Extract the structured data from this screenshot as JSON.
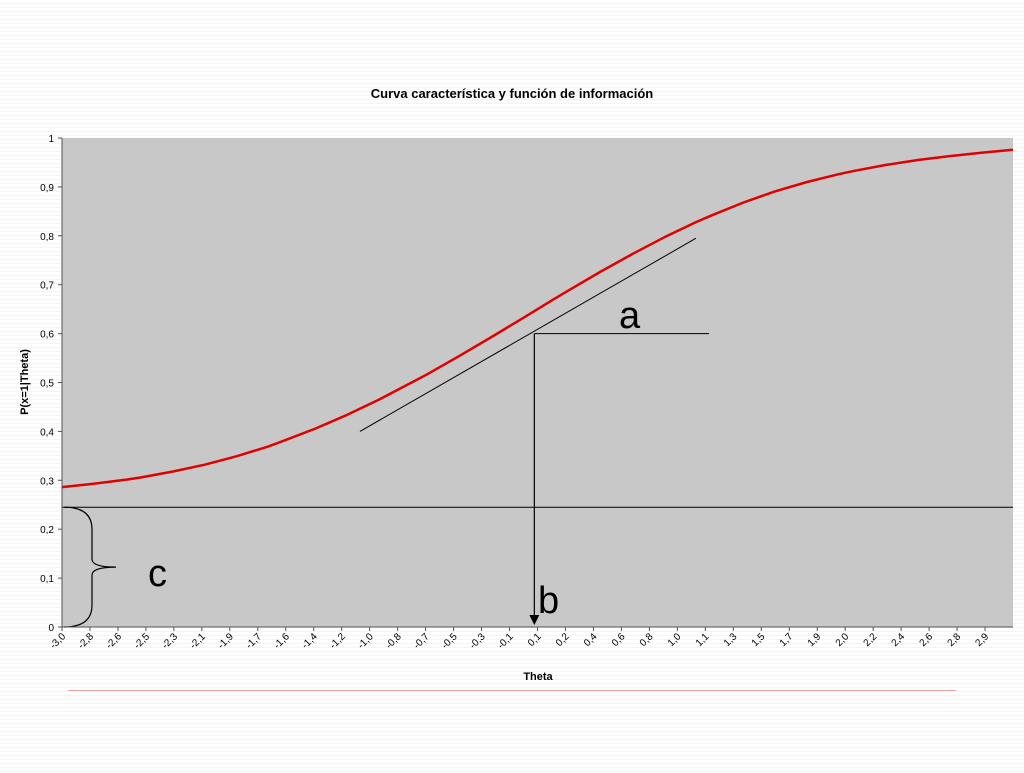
{
  "chart_data": {
    "type": "line",
    "title": "Curva característica y función de información",
    "xlabel": "Theta",
    "ylabel": "P(x=1|Theta)",
    "xlim": [
      -3.0,
      3.0
    ],
    "ylim": [
      0,
      1
    ],
    "yticks": [
      0,
      0.1,
      0.2,
      0.3,
      0.4,
      0.5,
      0.6,
      0.7,
      0.8,
      0.9,
      1
    ],
    "ytick_labels": [
      "0",
      "0,1",
      "0,2",
      "0,3",
      "0,4",
      "0,5",
      "0,6",
      "0,7",
      "0,8",
      "0,9",
      "1"
    ],
    "xtick_labels": [
      "-3,0",
      "-2,8",
      "-2,6",
      "-2,5",
      "-2,3",
      "-2,1",
      "-1,9",
      "-1,7",
      "-1,6",
      "-1,4",
      "-1,2",
      "-1,0",
      "-0,8",
      "-0,7",
      "-0,5",
      "-0,3",
      "-0,1",
      "0,1",
      "0,2",
      "0,4",
      "0,6",
      "0,8",
      "1,0",
      "1,1",
      "1,3",
      "1,5",
      "1,7",
      "1,9",
      "2,0",
      "2,2",
      "2,4",
      "2,6",
      "2,8",
      "2,9"
    ],
    "series": [
      {
        "color": "#e00000",
        "x": [
          -3.0,
          -2.8,
          -2.6,
          -2.5,
          -2.3,
          -2.1,
          -1.9,
          -1.7,
          -1.6,
          -1.4,
          -1.2,
          -1.0,
          -0.8,
          -0.7,
          -0.5,
          -0.3,
          -0.1,
          0.1,
          0.2,
          0.4,
          0.6,
          0.8,
          1.0,
          1.1,
          1.3,
          1.5,
          1.7,
          1.9,
          2.0,
          2.2,
          2.4,
          2.6,
          2.8,
          2.9,
          3.0
        ],
        "y": [
          0.286,
          0.293,
          0.301,
          0.306,
          0.318,
          0.332,
          0.349,
          0.369,
          0.381,
          0.406,
          0.434,
          0.465,
          0.499,
          0.516,
          0.553,
          0.591,
          0.63,
          0.67,
          0.689,
          0.727,
          0.763,
          0.797,
          0.828,
          0.842,
          0.868,
          0.891,
          0.91,
          0.926,
          0.933,
          0.945,
          0.955,
          0.963,
          0.97,
          0.973,
          0.976
        ]
      }
    ],
    "grid": false,
    "background_color": "#c8c8c8",
    "annotations": {
      "c_value": 0.245,
      "b_theta": -0.02,
      "b_p": 0.6,
      "tangent_from": [
        -1.12,
        0.4
      ],
      "tangent_to": [
        1.0,
        0.795
      ],
      "label_a": "a",
      "label_b": "b",
      "label_c": "c"
    }
  }
}
